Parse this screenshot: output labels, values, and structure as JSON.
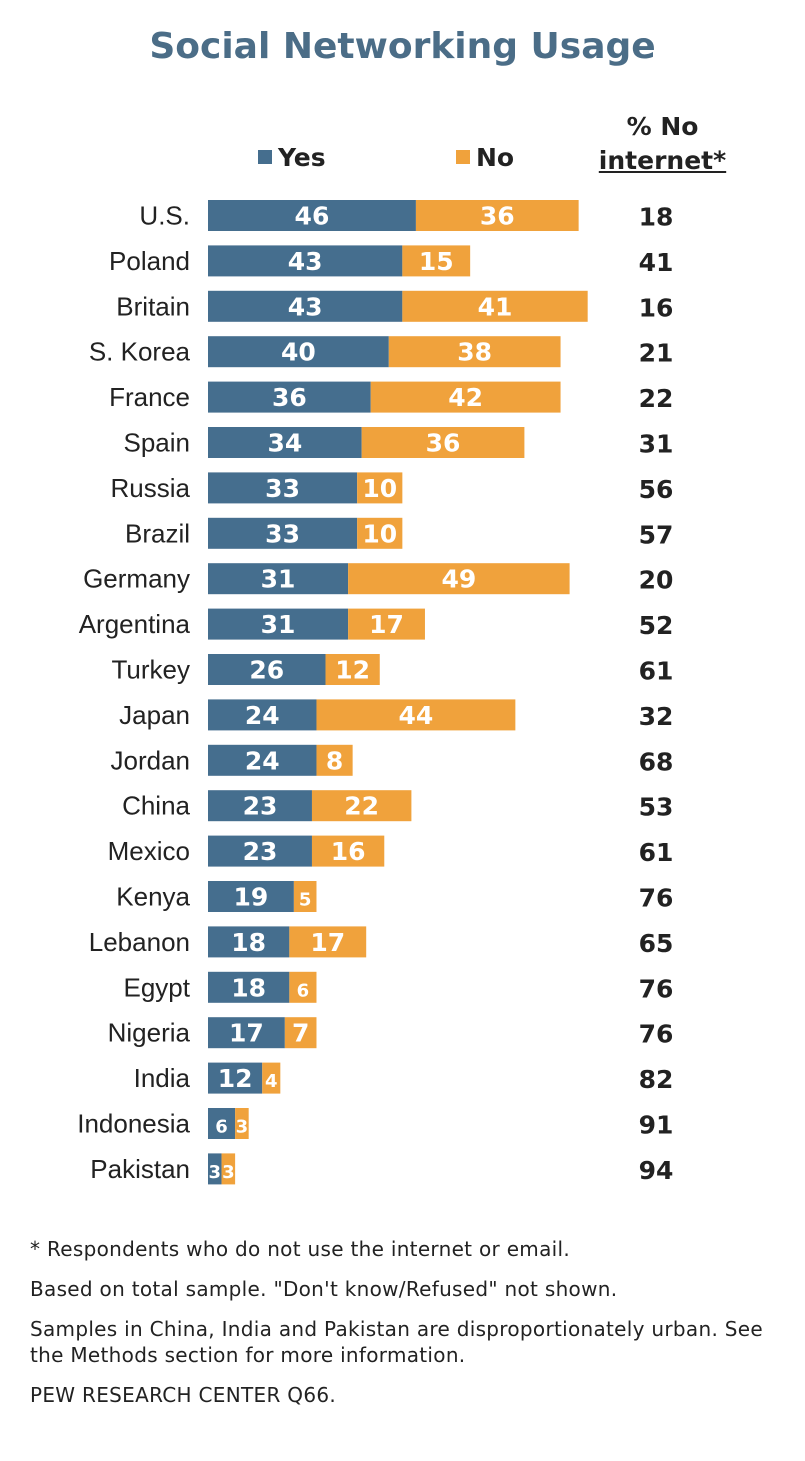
{
  "header": {
    "title": "Social Networking Usage",
    "legend_yes": "Yes",
    "legend_no": "No",
    "no_internet_line1": "% No",
    "no_internet_line2": "internet*"
  },
  "colors": {
    "yes": "#456e8e",
    "no": "#f0a23c",
    "title": "#4b6d87"
  },
  "chart_data": {
    "type": "bar",
    "orientation": "horizontal",
    "stacked": true,
    "title": "Social Networking Usage",
    "categories": [
      "U.S.",
      "Poland",
      "Britain",
      "S. Korea",
      "France",
      "Spain",
      "Russia",
      "Brazil",
      "Germany",
      "Argentina",
      "Turkey",
      "Japan",
      "Jordan",
      "China",
      "Mexico",
      "Kenya",
      "Lebanon",
      "Egypt",
      "Nigeria",
      "India",
      "Indonesia",
      "Pakistan"
    ],
    "series": [
      {
        "name": "Yes",
        "values": [
          46,
          43,
          43,
          40,
          36,
          34,
          33,
          33,
          31,
          31,
          26,
          24,
          24,
          23,
          23,
          19,
          18,
          18,
          17,
          12,
          6,
          3
        ]
      },
      {
        "name": "No",
        "values": [
          36,
          15,
          41,
          38,
          42,
          36,
          10,
          10,
          49,
          17,
          12,
          44,
          8,
          22,
          16,
          5,
          17,
          6,
          7,
          4,
          3,
          3
        ]
      }
    ],
    "no_internet": {
      "name": "% No internet*",
      "values": [
        18,
        41,
        16,
        21,
        22,
        31,
        56,
        57,
        20,
        52,
        61,
        32,
        68,
        53,
        61,
        76,
        65,
        76,
        76,
        82,
        91,
        94
      ]
    }
  },
  "footnotes": {
    "asterisk": "* Respondents who do not use the internet or email.",
    "base": "Based on total sample. \"Don't know/Refused\" not shown.",
    "samples": "Samples in China, India and Pakistan are disproportionately urban. See the Methods section for more information.",
    "source": "PEW RESEARCH CENTER Q66."
  }
}
